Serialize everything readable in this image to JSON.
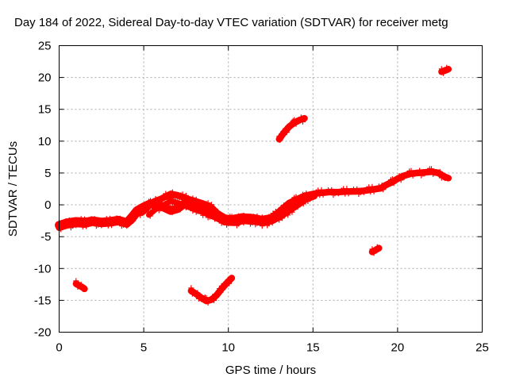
{
  "chart_data": {
    "type": "scatter",
    "title": "Day 184 of 2022, Sidereal Day-to-day VTEC variation (SDTVAR) for receiver metg",
    "xlabel": "GPS time / hours",
    "ylabel": "SDTVAR / TECUs",
    "xlim": [
      0,
      25
    ],
    "ylim": [
      -20,
      25
    ],
    "xticks": [
      0,
      5,
      10,
      15,
      20,
      25
    ],
    "yticks": [
      -20,
      -15,
      -10,
      -5,
      0,
      5,
      10,
      15,
      20,
      25
    ],
    "grid": true,
    "marker": "+",
    "series": [
      {
        "name": "main-track-a",
        "color": "#ff0000",
        "width": 2.6,
        "points": [
          [
            0.0,
            -3.6
          ],
          [
            0.5,
            -3.2
          ],
          [
            1.0,
            -3.0
          ],
          [
            1.5,
            -3.1
          ],
          [
            2.0,
            -2.8
          ],
          [
            2.5,
            -3.0
          ],
          [
            3.0,
            -2.9
          ],
          [
            3.5,
            -2.7
          ],
          [
            4.0,
            -3.1
          ],
          [
            4.3,
            -2.4
          ],
          [
            4.6,
            -1.4
          ],
          [
            5.0,
            -1.0
          ],
          [
            5.3,
            -0.2
          ],
          [
            5.6,
            0.5
          ],
          [
            6.0,
            0.9
          ],
          [
            6.3,
            1.3
          ],
          [
            6.6,
            1.7
          ],
          [
            7.0,
            1.5
          ],
          [
            7.5,
            1.0
          ],
          [
            8.0,
            0.6
          ],
          [
            8.5,
            0.2
          ],
          [
            9.0,
            -0.4
          ],
          [
            9.3,
            -1.2
          ],
          [
            9.6,
            -2.0
          ],
          [
            10.0,
            -2.6
          ],
          [
            10.5,
            -2.4
          ],
          [
            11.0,
            -2.2
          ],
          [
            11.5,
            -2.3
          ],
          [
            12.0,
            -2.6
          ],
          [
            12.4,
            -2.2
          ],
          [
            12.8,
            -1.5
          ],
          [
            13.2,
            -0.6
          ],
          [
            13.6,
            0.3
          ],
          [
            14.0,
            0.8
          ],
          [
            14.5,
            1.4
          ],
          [
            15.0,
            1.7
          ],
          [
            15.5,
            1.9
          ],
          [
            16.0,
            2.0
          ],
          [
            16.5,
            2.0
          ],
          [
            17.0,
            2.1
          ],
          [
            17.5,
            2.1
          ],
          [
            18.0,
            2.2
          ],
          [
            18.5,
            2.4
          ],
          [
            19.0,
            2.6
          ],
          [
            19.3,
            3.1
          ],
          [
            19.7,
            3.6
          ],
          [
            20.0,
            4.1
          ],
          [
            20.4,
            4.6
          ],
          [
            20.8,
            4.9
          ],
          [
            21.2,
            5.0
          ],
          [
            21.6,
            5.1
          ],
          [
            22.0,
            5.2
          ],
          [
            22.4,
            5.0
          ],
          [
            22.8,
            4.4
          ],
          [
            23.0,
            4.2
          ]
        ]
      },
      {
        "name": "main-track-b",
        "color": "#ff0000",
        "width": 3.4,
        "points": [
          [
            0.0,
            -3.2
          ],
          [
            0.5,
            -2.8
          ],
          [
            1.0,
            -2.6
          ],
          [
            1.5,
            -2.7
          ],
          [
            2.0,
            -2.5
          ],
          [
            2.5,
            -2.7
          ],
          [
            3.0,
            -2.6
          ],
          [
            3.5,
            -2.4
          ],
          [
            4.0,
            -2.8
          ],
          [
            4.3,
            -1.9
          ],
          [
            4.6,
            -0.9
          ],
          [
            5.0,
            -0.3
          ],
          [
            5.4,
            0.2
          ],
          [
            5.8,
            0.1
          ],
          [
            6.2,
            -0.4
          ],
          [
            6.6,
            -0.9
          ],
          [
            7.0,
            -0.6
          ],
          [
            7.4,
            0.2
          ],
          [
            7.8,
            0.3
          ],
          [
            8.2,
            -0.2
          ],
          [
            8.6,
            -0.5
          ],
          [
            9.0,
            -0.9
          ],
          [
            9.4,
            -1.6
          ],
          [
            9.8,
            -2.2
          ],
          [
            10.2,
            -2.3
          ],
          [
            10.8,
            -2.0
          ],
          [
            11.4,
            -2.1
          ],
          [
            12.0,
            -2.4
          ],
          [
            12.6,
            -2.1
          ],
          [
            13.0,
            -1.4
          ],
          [
            13.4,
            -0.5
          ],
          [
            13.8,
            0.1
          ],
          [
            14.2,
            0.7
          ],
          [
            14.6,
            1.2
          ]
        ]
      },
      {
        "name": "main-track-c",
        "color": "#ff0000",
        "width": 2.2,
        "points": [
          [
            5.3,
            -1.6
          ],
          [
            5.7,
            -0.7
          ],
          [
            6.2,
            0.0
          ],
          [
            6.6,
            0.6
          ],
          [
            7.0,
            0.3
          ],
          [
            7.5,
            -0.2
          ],
          [
            8.0,
            -0.7
          ],
          [
            8.6,
            -1.3
          ],
          [
            9.2,
            -2.0
          ],
          [
            9.8,
            -2.8
          ],
          [
            10.3,
            -2.9
          ],
          [
            10.9,
            -2.6
          ],
          [
            11.5,
            -2.7
          ],
          [
            12.1,
            -2.9
          ],
          [
            12.6,
            -2.6
          ],
          [
            13.1,
            -1.9
          ],
          [
            13.6,
            -1.0
          ],
          [
            14.1,
            -0.1
          ],
          [
            14.6,
            0.8
          ],
          [
            15.1,
            1.3
          ]
        ]
      },
      {
        "name": "arc-rising-short",
        "color": "#ff0000",
        "width": 2.6,
        "points": [
          [
            13.0,
            10.3
          ],
          [
            13.3,
            11.4
          ],
          [
            13.6,
            12.3
          ],
          [
            13.9,
            12.9
          ],
          [
            14.2,
            13.3
          ],
          [
            14.5,
            13.6
          ]
        ]
      },
      {
        "name": "arc-lower-u",
        "color": "#ff0000",
        "width": 2.6,
        "points": [
          [
            7.8,
            -13.5
          ],
          [
            8.1,
            -14.0
          ],
          [
            8.4,
            -14.6
          ],
          [
            8.7,
            -15.1
          ],
          [
            9.0,
            -14.9
          ],
          [
            9.3,
            -14.2
          ],
          [
            9.6,
            -13.2
          ],
          [
            9.9,
            -12.3
          ],
          [
            10.2,
            -11.5
          ]
        ]
      },
      {
        "name": "segment-early-low",
        "color": "#ff0000",
        "width": 2.6,
        "points": [
          [
            1.0,
            -12.4
          ],
          [
            1.2,
            -12.7
          ],
          [
            1.4,
            -13.0
          ],
          [
            1.5,
            -13.2
          ]
        ]
      },
      {
        "name": "segment-late-low",
        "color": "#ff0000",
        "width": 2.6,
        "points": [
          [
            18.5,
            -7.4
          ],
          [
            18.7,
            -7.1
          ],
          [
            18.9,
            -6.8
          ]
        ]
      },
      {
        "name": "segment-late-high",
        "color": "#ff0000",
        "width": 2.6,
        "points": [
          [
            22.6,
            20.9
          ],
          [
            22.8,
            21.1
          ],
          [
            23.0,
            21.3
          ]
        ]
      }
    ]
  }
}
